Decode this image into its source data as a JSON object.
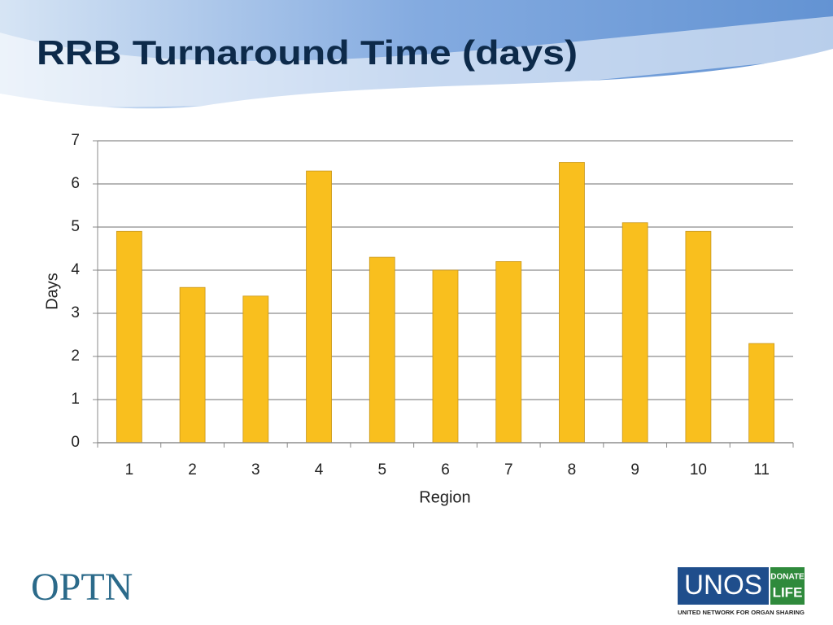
{
  "chart_data": {
    "type": "bar",
    "title": "RRB Turnaround Time (days)",
    "x_label": "Region",
    "y_label": "Days",
    "categories": [
      "1",
      "2",
      "3",
      "4",
      "5",
      "6",
      "7",
      "8",
      "9",
      "10",
      "11"
    ],
    "values": [
      4.9,
      3.6,
      3.4,
      6.3,
      4.3,
      4.0,
      4.2,
      6.5,
      5.1,
      4.9,
      2.3
    ],
    "color": "#f9bf1e",
    "ylim": [
      0,
      7
    ],
    "yticks": [
      0,
      1,
      2,
      3,
      4,
      5,
      6,
      7
    ],
    "grid": true
  },
  "footer": {
    "left_logo": "OPTN",
    "right_logo": {
      "name": "UNOS",
      "badge_top": "DONATE",
      "badge_bottom": "LIFE",
      "tagline": "UNITED NETWORK FOR ORGAN SHARING"
    }
  }
}
